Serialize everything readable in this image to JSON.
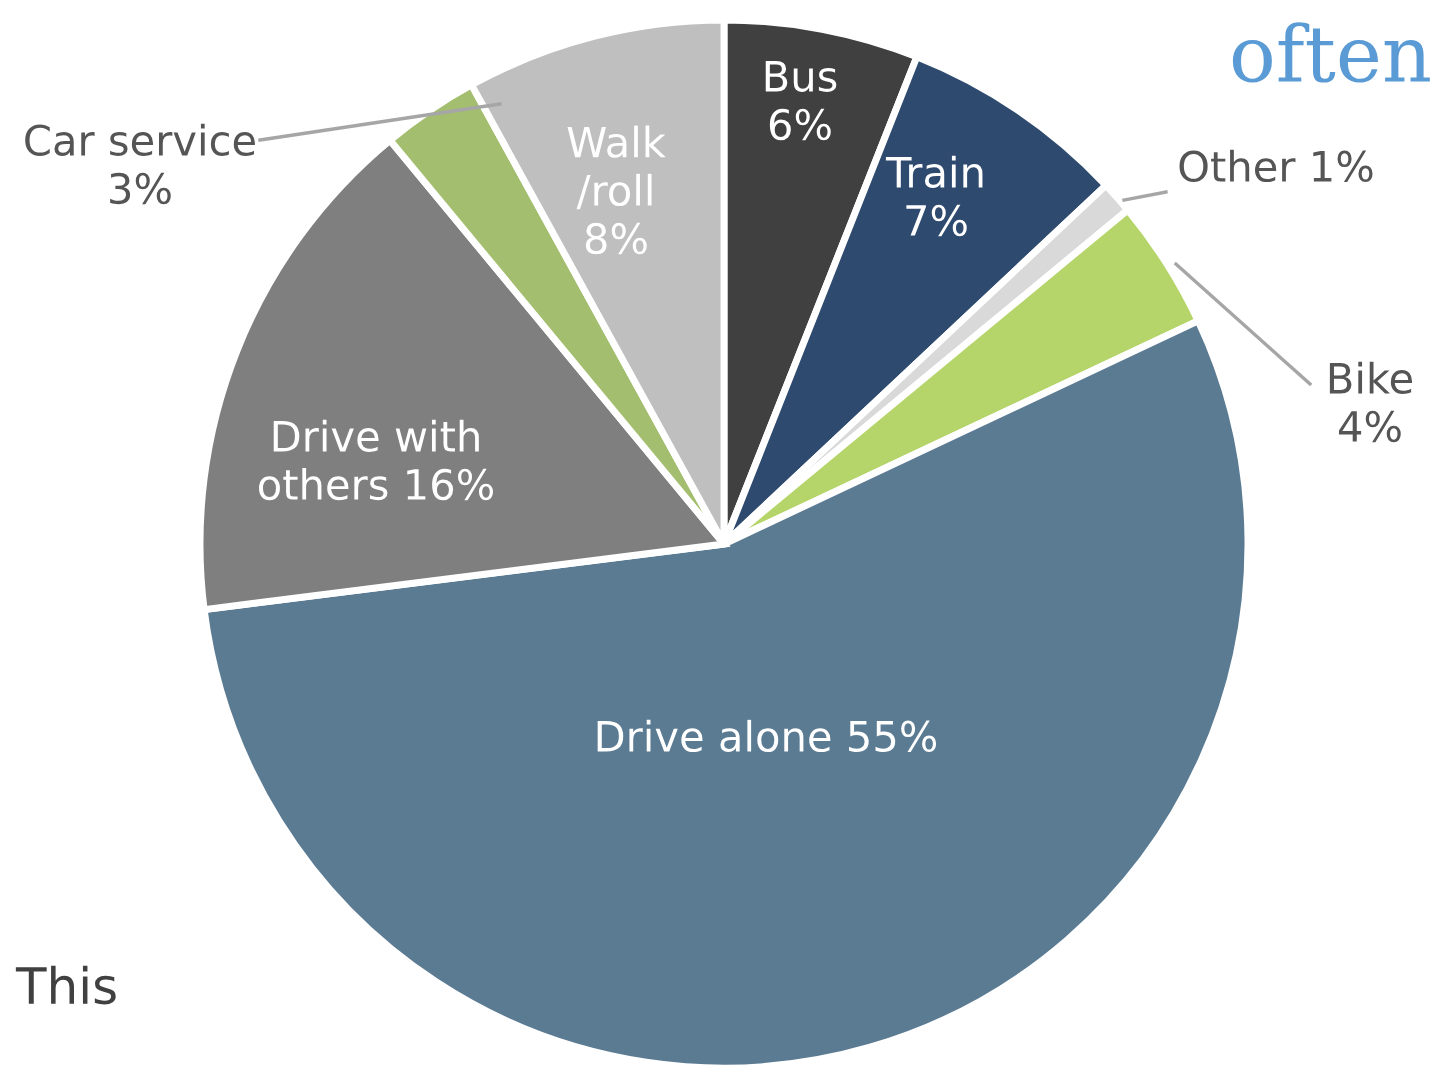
{
  "chart_data": {
    "type": "pie",
    "categories": [
      "Bus",
      "Train",
      "Other",
      "Bike",
      "Drive alone",
      "Drive with\nothers",
      "Car service",
      "Walk\n/roll"
    ],
    "values": [
      6,
      7,
      1,
      4,
      55,
      16,
      3,
      8
    ],
    "value_labels": [
      "6%",
      "7%",
      "1%",
      "4%",
      "55%",
      "16%",
      "3%",
      "8%"
    ],
    "colors": [
      "#404040",
      "#2e4a6e",
      "#d9d9d9",
      "#b5d56a",
      "#5b7b93",
      "#7f7f7f",
      "#a3be6e",
      "#bfbfbf"
    ],
    "annotations": [
      "often",
      "This"
    ],
    "legend": false
  }
}
